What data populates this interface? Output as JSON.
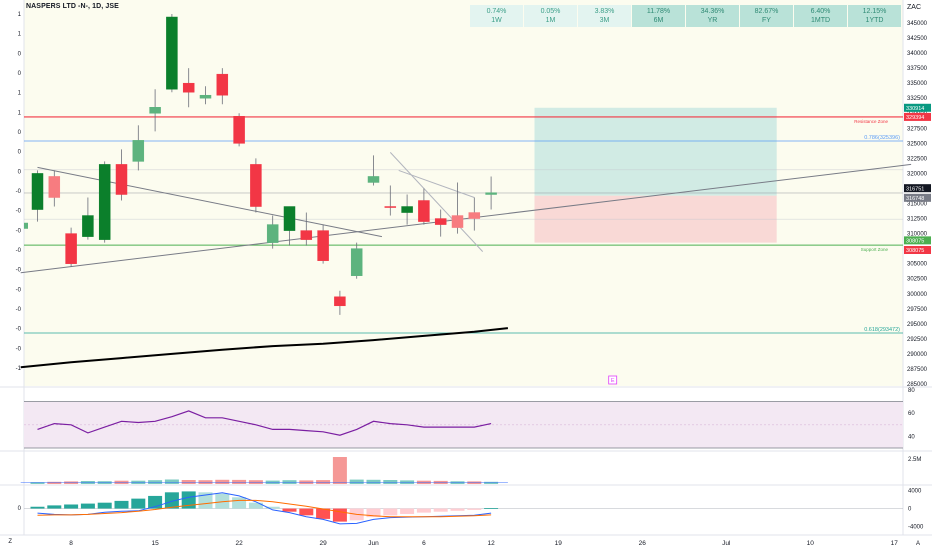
{
  "header": {
    "title": "NASPERS LTD -N-, 1D, JSE",
    "currency": "ZAC"
  },
  "performance": [
    {
      "value": "0.74%",
      "period": "1W",
      "shade": "light"
    },
    {
      "value": "0.05%",
      "period": "1M",
      "shade": "light"
    },
    {
      "value": "3.83%",
      "period": "3M",
      "shade": "light"
    },
    {
      "value": "11.78%",
      "period": "6M",
      "shade": "dark"
    },
    {
      "value": "34.36%",
      "period": "YR",
      "shade": "dark"
    },
    {
      "value": "82.67%",
      "period": "FY",
      "shade": "dark"
    },
    {
      "value": "6.40%",
      "period": "1MTD",
      "shade": "dark"
    },
    {
      "value": "12.15%",
      "period": "1YTD",
      "shade": "dark"
    }
  ],
  "colors": {
    "up": "#5db37e",
    "up_strong": "#0b7f2b",
    "down": "#f23645",
    "down_light": "#f77c80",
    "resistance": "#f23645",
    "support": "#4caf50",
    "fib": "#5b9cf6",
    "ma": "#000000",
    "rsi": "#7b1fa2",
    "long_target": "#d1ebe4",
    "long_stop": "#f9d9d6"
  },
  "chart_data": {
    "type": "candlestick",
    "price_axis": {
      "ylim": [
        285000,
        347500
      ],
      "ticks": [
        345000,
        342500,
        340000,
        337500,
        335000,
        332500,
        330000,
        327500,
        325000,
        322500,
        320000,
        317500,
        315000,
        312500,
        310000,
        307500,
        305000,
        302500,
        300000,
        297500,
        295000,
        292500,
        290000,
        287500,
        285000
      ]
    },
    "x_axis": {
      "labels": [
        {
          "text": "8",
          "idx": 2
        },
        {
          "text": "15",
          "idx": 7
        },
        {
          "text": "22",
          "idx": 12
        },
        {
          "text": "29",
          "idx": 17
        },
        {
          "text": "Jun",
          "idx": 20
        },
        {
          "text": "6",
          "idx": 23
        },
        {
          "text": "12",
          "idx": 27
        },
        {
          "text": "19",
          "idx": 31
        },
        {
          "text": "26",
          "idx": 36
        },
        {
          "text": "Jul",
          "idx": 41
        },
        {
          "text": "10",
          "idx": 46
        },
        {
          "text": "17",
          "idx": 51
        }
      ]
    },
    "candles": [
      {
        "o": 314000,
        "h": 320500,
        "l": 312000,
        "c": 320000,
        "s": "up_strong"
      },
      {
        "o": 319500,
        "h": 320500,
        "l": 314500,
        "c": 316000,
        "s": "down_light"
      },
      {
        "o": 310000,
        "h": 311000,
        "l": 304500,
        "c": 305000,
        "s": "down"
      },
      {
        "o": 309500,
        "h": 316000,
        "l": 309000,
        "c": 313000,
        "s": "up_strong"
      },
      {
        "o": 309000,
        "h": 322000,
        "l": 308500,
        "c": 321500,
        "s": "up_strong"
      },
      {
        "o": 321500,
        "h": 324000,
        "l": 315500,
        "c": 316500,
        "s": "down"
      },
      {
        "o": 322000,
        "h": 328000,
        "l": 320500,
        "c": 325500,
        "s": "up"
      },
      {
        "o": 330000,
        "h": 334000,
        "l": 327000,
        "c": 331000,
        "s": "up"
      },
      {
        "o": 334000,
        "h": 346500,
        "l": 333500,
        "c": 346000,
        "s": "up_strong"
      },
      {
        "o": 335000,
        "h": 337500,
        "l": 331000,
        "c": 333500,
        "s": "down"
      },
      {
        "o": 333000,
        "h": 334500,
        "l": 331500,
        "c": 332500,
        "s": "up"
      },
      {
        "o": 336500,
        "h": 337500,
        "l": 331500,
        "c": 333000,
        "s": "down"
      },
      {
        "o": 329500,
        "h": 330000,
        "l": 324500,
        "c": 325000,
        "s": "down"
      },
      {
        "o": 321500,
        "h": 322500,
        "l": 313500,
        "c": 314500,
        "s": "down"
      },
      {
        "o": 308500,
        "h": 313000,
        "l": 307500,
        "c": 311500,
        "s": "up"
      },
      {
        "o": 310500,
        "h": 314500,
        "l": 308000,
        "c": 314500,
        "s": "up_strong"
      },
      {
        "o": 310500,
        "h": 313500,
        "l": 308000,
        "c": 309000,
        "s": "down"
      },
      {
        "o": 310500,
        "h": 311500,
        "l": 305000,
        "c": 305500,
        "s": "down"
      },
      {
        "o": 299500,
        "h": 300500,
        "l": 296500,
        "c": 298000,
        "s": "down"
      },
      {
        "o": 303000,
        "h": 308500,
        "l": 302500,
        "c": 307500,
        "s": "up"
      },
      {
        "o": 318500,
        "h": 323000,
        "l": 318000,
        "c": 319500,
        "s": "up"
      },
      {
        "o": 314500,
        "h": 318000,
        "l": 313000,
        "c": 314500,
        "s": "down"
      },
      {
        "o": 313500,
        "h": 316500,
        "l": 311500,
        "c": 314500,
        "s": "up_strong"
      },
      {
        "o": 315500,
        "h": 317500,
        "l": 311500,
        "c": 312000,
        "s": "down"
      },
      {
        "o": 312500,
        "h": 314000,
        "l": 309500,
        "c": 311500,
        "s": "down"
      },
      {
        "o": 311000,
        "h": 318500,
        "l": 310000,
        "c": 313000,
        "s": "down_light"
      },
      {
        "o": 313500,
        "h": 316000,
        "l": 310500,
        "c": 312500,
        "s": "down_light"
      },
      {
        "o": 316500,
        "h": 319500,
        "l": 314000,
        "c": 316800,
        "s": "up"
      }
    ],
    "levels": {
      "resistance": {
        "value": 329394,
        "label": "Resistance Zone",
        "price_label": "329394"
      },
      "support": {
        "value": 308075,
        "label": "Support Zone",
        "price_labels": [
          "308075",
          "308075"
        ]
      },
      "fib_786": {
        "value": 325396,
        "label": "0.786(325396)"
      },
      "fib_618": {
        "value": 293472,
        "label": "0.618(293472)"
      },
      "last_price": {
        "value": 316751,
        "label": "316751"
      },
      "prev_close": {
        "value": 316748,
        "label": "316748"
      },
      "target": {
        "value": 330914,
        "label": "330914"
      }
    },
    "position": {
      "type": "long",
      "start_idx": 30,
      "end_idx": 44,
      "entry": 316300,
      "target": 330914,
      "stop": 308500
    },
    "ma_200": [
      {
        "idx": -1,
        "v": 287800
      },
      {
        "idx": 2,
        "v": 288600
      },
      {
        "idx": 5,
        "v": 289300
      },
      {
        "idx": 8,
        "v": 290000
      },
      {
        "idx": 11,
        "v": 290700
      },
      {
        "idx": 14,
        "v": 291300
      },
      {
        "idx": 17,
        "v": 291700
      },
      {
        "idx": 20,
        "v": 292300
      },
      {
        "idx": 23,
        "v": 293000
      },
      {
        "idx": 26,
        "v": 293700
      },
      {
        "idx": 28,
        "v": 294300
      }
    ],
    "trendlines": [
      {
        "x1": -1,
        "y1": 303500,
        "x2": 52,
        "y2": 321500,
        "color": "#787b86"
      },
      {
        "x1": 0,
        "y1": 321000,
        "x2": 20.5,
        "y2": 309500,
        "color": "#787b86"
      },
      {
        "x1": 21,
        "y1": 323500,
        "x2": 26.5,
        "y2": 307000,
        "color": "#b2b5be"
      },
      {
        "x1": 21.5,
        "y1": 320500,
        "x2": 26,
        "y2": 316000,
        "color": "#b2b5be"
      }
    ],
    "rsi": {
      "ylim": [
        30,
        80
      ],
      "ticks": [
        80,
        60,
        40
      ],
      "upper": 70,
      "mid": 50,
      "lower": 30,
      "values": [
        46,
        51,
        50,
        43,
        48,
        53,
        52,
        53,
        57,
        62,
        56,
        56,
        53,
        50,
        46,
        46,
        45,
        44,
        41,
        46,
        53,
        51,
        50,
        48,
        48,
        48,
        48,
        51
      ]
    },
    "volume": {
      "ylim": [
        0,
        3000000
      ],
      "tick": "2.5M",
      "values": [
        180000,
        220000,
        260000,
        300000,
        280000,
        330000,
        330000,
        380000,
        450000,
        400000,
        380000,
        420000,
        410000,
        380000,
        340000,
        380000,
        360000,
        390000,
        2700000,
        440000,
        420000,
        400000,
        360000,
        330000,
        310000,
        270000,
        260000,
        220000
      ],
      "tail_end_idx": 28
    },
    "macd": {
      "ylim": [
        -5200,
        5000
      ],
      "ticks": [
        4000,
        0,
        -4000
      ],
      "hist": [
        400,
        700,
        900,
        1100,
        1300,
        1700,
        2200,
        2800,
        3600,
        3800,
        3600,
        3300,
        2500,
        1300,
        400,
        -700,
        -1500,
        -2300,
        -2900,
        -2600,
        -1900,
        -1500,
        -1200,
        -900,
        -700,
        -500,
        -300,
        100
      ],
      "macd": [
        -1000,
        -1300,
        -1400,
        -1300,
        -800,
        -600,
        -500,
        400,
        1600,
        2500,
        3000,
        3500,
        2800,
        1500,
        -300,
        -900,
        -1800,
        -2400,
        -3400,
        -3300,
        -2400,
        -2000,
        -1900,
        -1800,
        -1700,
        -1600,
        -1500,
        -1000
      ],
      "signal": [
        -1500,
        -1400,
        -1400,
        -1300,
        -1100,
        -900,
        -600,
        -200,
        300,
        700,
        1100,
        1500,
        1800,
        1800,
        1500,
        1000,
        500,
        -100,
        -700,
        -1300,
        -1600,
        -1800,
        -1800,
        -1800,
        -1800,
        -1700,
        -1600,
        -1400
      ]
    },
    "left_axis_labels": [
      "1",
      "1",
      "0",
      "0",
      "1",
      "1",
      "0",
      "0",
      "0",
      "-0",
      "-0",
      "-0",
      "-0",
      "-0",
      "-0",
      "-0",
      "-0",
      "-0",
      "-1"
    ],
    "left_lower_labels": [
      "Z",
      "0"
    ],
    "bottom_right_label": "A",
    "event_marker": "E"
  }
}
